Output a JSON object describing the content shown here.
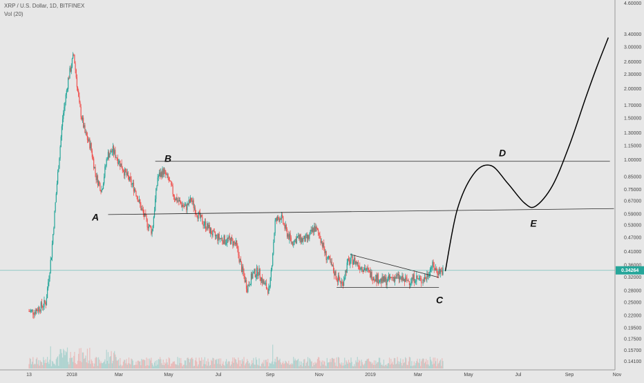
{
  "header": {
    "symbol_line": "XRP / U.S. Dollar, 1D, BITFINEX",
    "volume_line": "Vol (20)"
  },
  "colors": {
    "background": "#e7e7e7",
    "up": "#26a69a",
    "down": "#ef5350",
    "price_line": "#26a69a",
    "annotation": "#111111"
  },
  "chart_data": {
    "type": "candlestick",
    "title": "XRP / U.S. Dollar, 1D, BITFINEX",
    "indicator": "Vol (20)",
    "y_scale": "log",
    "ylim": [
      0.13,
      4.8
    ],
    "y_ticks": [
      "4.60000",
      "3.40000",
      "3.00000",
      "2.60000",
      "2.30000",
      "2.00000",
      "1.70000",
      "1.50000",
      "1.30000",
      "1.15000",
      "1.00000",
      "0.85000",
      "0.75000",
      "0.67000",
      "0.59000",
      "0.53000",
      "0.47000",
      "0.41000",
      "0.36000",
      "0.32000",
      "0.28000",
      "0.25000",
      "0.22000",
      "0.19500",
      "0.17500",
      "0.15700",
      "0.14100"
    ],
    "x_ticks": [
      "13",
      "2018",
      "Mar",
      "May",
      "Jul",
      "Sep",
      "Nov",
      "2019",
      "Mar",
      "May",
      "Jul",
      "Sep",
      "Nov"
    ],
    "current_price": "0.34264",
    "price_path_weeks": [
      [
        "2017-11-13",
        0.23
      ],
      [
        "2017-11-20",
        0.23
      ],
      [
        "2017-11-27",
        0.24
      ],
      [
        "2017-12-04",
        0.25
      ],
      [
        "2017-12-11",
        0.4
      ],
      [
        "2017-12-18",
        0.8
      ],
      [
        "2017-12-25",
        1.5
      ],
      [
        "2018-01-01",
        2.2
      ],
      [
        "2018-01-08",
        2.8
      ],
      [
        "2018-01-15",
        1.7
      ],
      [
        "2018-01-22",
        1.3
      ],
      [
        "2018-01-29",
        1.15
      ],
      [
        "2018-02-05",
        0.85
      ],
      [
        "2018-02-12",
        0.75
      ],
      [
        "2018-02-19",
        1.05
      ],
      [
        "2018-02-26",
        1.1
      ],
      [
        "2018-03-05",
        1.0
      ],
      [
        "2018-03-12",
        0.9
      ],
      [
        "2018-03-19",
        0.82
      ],
      [
        "2018-03-26",
        0.75
      ],
      [
        "2018-04-02",
        0.63
      ],
      [
        "2018-04-09",
        0.55
      ],
      [
        "2018-04-16",
        0.5
      ],
      [
        "2018-04-23",
        0.85
      ],
      [
        "2018-04-30",
        0.9
      ],
      [
        "2018-05-07",
        0.82
      ],
      [
        "2018-05-14",
        0.7
      ],
      [
        "2018-05-21",
        0.66
      ],
      [
        "2018-05-28",
        0.63
      ],
      [
        "2018-06-04",
        0.68
      ],
      [
        "2018-06-11",
        0.6
      ],
      [
        "2018-06-18",
        0.55
      ],
      [
        "2018-06-25",
        0.52
      ],
      [
        "2018-07-02",
        0.48
      ],
      [
        "2018-07-09",
        0.47
      ],
      [
        "2018-07-16",
        0.46
      ],
      [
        "2018-07-23",
        0.46
      ],
      [
        "2018-07-30",
        0.44
      ],
      [
        "2018-08-06",
        0.35
      ],
      [
        "2018-08-13",
        0.29
      ],
      [
        "2018-08-20",
        0.33
      ],
      [
        "2018-08-27",
        0.34
      ],
      [
        "2018-09-03",
        0.3
      ],
      [
        "2018-09-10",
        0.28
      ],
      [
        "2018-09-17",
        0.55
      ],
      [
        "2018-09-24",
        0.58
      ],
      [
        "2018-10-01",
        0.5
      ],
      [
        "2018-10-08",
        0.45
      ],
      [
        "2018-10-15",
        0.47
      ],
      [
        "2018-10-22",
        0.46
      ],
      [
        "2018-10-29",
        0.47
      ],
      [
        "2018-11-05",
        0.52
      ],
      [
        "2018-11-12",
        0.48
      ],
      [
        "2018-11-19",
        0.4
      ],
      [
        "2018-11-26",
        0.36
      ],
      [
        "2018-12-03",
        0.32
      ],
      [
        "2018-12-10",
        0.3
      ],
      [
        "2018-12-17",
        0.37
      ],
      [
        "2018-12-24",
        0.38
      ],
      [
        "2018-12-31",
        0.36
      ],
      [
        "2019-01-07",
        0.35
      ],
      [
        "2019-01-14",
        0.33
      ],
      [
        "2019-01-21",
        0.32
      ],
      [
        "2019-01-28",
        0.31
      ],
      [
        "2019-02-04",
        0.31
      ],
      [
        "2019-02-11",
        0.32
      ],
      [
        "2019-02-18",
        0.32
      ],
      [
        "2019-02-25",
        0.31
      ],
      [
        "2019-03-04",
        0.31
      ],
      [
        "2019-03-11",
        0.32
      ],
      [
        "2019-03-18",
        0.31
      ],
      [
        "2019-03-25",
        0.32
      ],
      [
        "2019-04-01",
        0.36
      ],
      [
        "2019-04-08",
        0.34
      ],
      [
        "2019-04-15",
        0.34
      ]
    ],
    "annotations": [
      {
        "label": "A",
        "level": 0.59
      },
      {
        "label": "B",
        "level": 0.99
      },
      {
        "label": "C",
        "level": 0.29
      },
      {
        "label": "D",
        "level": 0.95
      },
      {
        "label": "E",
        "level": 0.62
      }
    ],
    "trend_lines": [
      {
        "from": [
          "2018-02-20",
          0.59
        ],
        "to": [
          "2019-11-15",
          0.625
        ]
      },
      {
        "from": [
          "2018-04-20",
          0.99
        ],
        "to": [
          "2019-11-10",
          0.99
        ]
      },
      {
        "from": [
          "2018-12-03",
          0.29
        ],
        "to": [
          "2019-04-10",
          0.29
        ]
      },
      {
        "from": [
          "2018-12-20",
          0.4
        ],
        "to": [
          "2019-04-10",
          0.32
        ]
      }
    ],
    "projection": [
      [
        "2019-04-18",
        0.34
      ],
      [
        "2019-05-03",
        0.62
      ],
      [
        "2019-05-24",
        0.88
      ],
      [
        "2019-06-14",
        0.95
      ],
      [
        "2019-07-05",
        0.8
      ],
      [
        "2019-07-26",
        0.66
      ],
      [
        "2019-08-09",
        0.64
      ],
      [
        "2019-08-30",
        0.78
      ],
      [
        "2019-09-20",
        1.15
      ],
      [
        "2019-10-11",
        1.85
      ],
      [
        "2019-10-25",
        2.5
      ],
      [
        "2019-11-08",
        3.3
      ]
    ]
  }
}
